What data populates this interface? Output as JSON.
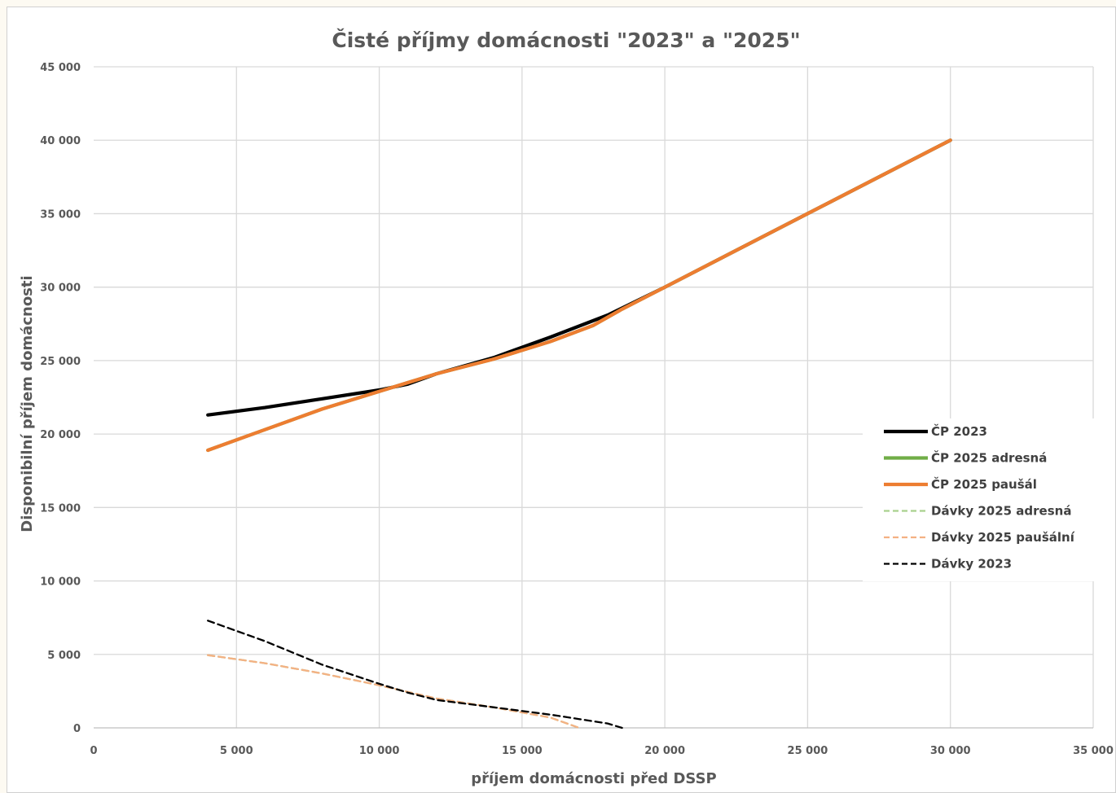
{
  "chart_data": {
    "type": "line",
    "title": "Čisté příjmy domácnosti \"2023\" a \"2025\"",
    "xlabel": "příjem domácnosti před DSSP",
    "ylabel": "Disponibilní příjem domácnosti",
    "xlim": [
      0,
      35000
    ],
    "ylim": [
      0,
      45000
    ],
    "x_ticks": [
      0,
      5000,
      10000,
      15000,
      20000,
      25000,
      30000,
      35000
    ],
    "x_tick_labels": [
      "0",
      "5 000",
      "10 000",
      "15 000",
      "20 000",
      "25 000",
      "30 000",
      "35 000"
    ],
    "y_ticks": [
      0,
      5000,
      10000,
      15000,
      20000,
      25000,
      30000,
      35000,
      40000,
      45000
    ],
    "y_tick_labels": [
      "0",
      "5 000",
      "10 000",
      "15 000",
      "20 000",
      "25 000",
      "30 000",
      "35 000",
      "40 000",
      "45 000"
    ],
    "grid": true,
    "legend_position": "right",
    "series": [
      {
        "name": "ČP 2023",
        "color": "#000000",
        "style": "solid",
        "points": [
          [
            4000,
            21300
          ],
          [
            6000,
            21800
          ],
          [
            8000,
            22400
          ],
          [
            10000,
            23000
          ],
          [
            11000,
            23400
          ],
          [
            12000,
            24100
          ],
          [
            14000,
            25200
          ],
          [
            16000,
            26600
          ],
          [
            18000,
            28100
          ],
          [
            20000,
            30000
          ],
          [
            25000,
            35000
          ],
          [
            30000,
            40000
          ]
        ]
      },
      {
        "name": "ČP 2025 adresná",
        "color": "#70ad47",
        "style": "solid",
        "points": [
          [
            4000,
            18900
          ],
          [
            6000,
            20300
          ],
          [
            8000,
            21700
          ],
          [
            10000,
            22900
          ],
          [
            12000,
            24100
          ],
          [
            14000,
            25100
          ],
          [
            16000,
            26300
          ],
          [
            17500,
            27400
          ],
          [
            18500,
            28500
          ],
          [
            20000,
            30000
          ],
          [
            25000,
            35000
          ],
          [
            30000,
            40000
          ]
        ]
      },
      {
        "name": "ČP 2025 paušál",
        "color": "#ed7d31",
        "style": "solid",
        "points": [
          [
            4000,
            18900
          ],
          [
            6000,
            20300
          ],
          [
            8000,
            21700
          ],
          [
            10000,
            22900
          ],
          [
            12000,
            24100
          ],
          [
            14000,
            25100
          ],
          [
            16000,
            26300
          ],
          [
            17500,
            27400
          ],
          [
            18500,
            28500
          ],
          [
            20000,
            30000
          ],
          [
            25000,
            35000
          ],
          [
            30000,
            40000
          ]
        ]
      },
      {
        "name": "Dávky 2025 adresná",
        "color": "#a9d18e",
        "style": "dashed",
        "points": [
          [
            4000,
            4950
          ],
          [
            6000,
            4400
          ],
          [
            8000,
            3700
          ],
          [
            10000,
            2900
          ],
          [
            12000,
            2000
          ],
          [
            14000,
            1400
          ],
          [
            16000,
            700
          ],
          [
            17000,
            0
          ]
        ]
      },
      {
        "name": "Dávky 2025 paušální",
        "color": "#f4b183",
        "style": "dashed",
        "points": [
          [
            4000,
            4950
          ],
          [
            6000,
            4400
          ],
          [
            8000,
            3700
          ],
          [
            10000,
            2900
          ],
          [
            12000,
            2000
          ],
          [
            14000,
            1400
          ],
          [
            16000,
            700
          ],
          [
            17000,
            0
          ]
        ]
      },
      {
        "name": "Dávky 2023",
        "color": "#000000",
        "style": "dashed",
        "points": [
          [
            4000,
            7300
          ],
          [
            6000,
            5900
          ],
          [
            8000,
            4300
          ],
          [
            10000,
            3000
          ],
          [
            11000,
            2400
          ],
          [
            12000,
            1900
          ],
          [
            14000,
            1400
          ],
          [
            16000,
            900
          ],
          [
            17000,
            600
          ],
          [
            18000,
            300
          ],
          [
            18500,
            0
          ]
        ]
      }
    ]
  }
}
